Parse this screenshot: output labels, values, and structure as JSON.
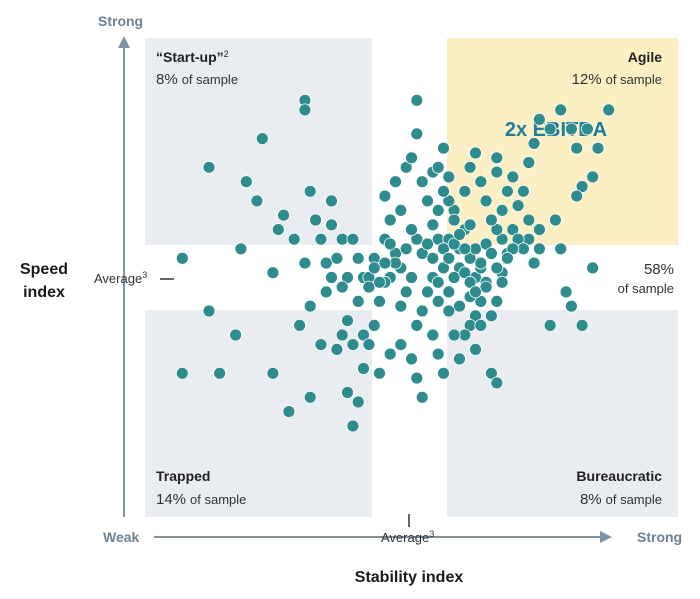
{
  "chart_data": {
    "type": "scatter",
    "title": "",
    "xlabel": "Stability index",
    "ylabel": "Speed index",
    "x_ends": {
      "low": "Weak",
      "high": "Strong"
    },
    "y_ends": {
      "low": "",
      "high": "Strong"
    },
    "x_average_label": "Average",
    "y_average_label": "Average",
    "average_footnote": "3",
    "xlim": [
      0,
      100
    ],
    "ylim": [
      0,
      100
    ],
    "x_average": 53,
    "y_average": 53,
    "quadrants": [
      {
        "id": "startup",
        "title": "“Start-up”",
        "footnote": "2",
        "pct": "8%",
        "pct_suffix": "of sample",
        "position": "top-left",
        "color": "#e9edf1"
      },
      {
        "id": "agile",
        "title": "Agile",
        "footnote": "",
        "pct": "12%",
        "pct_suffix": "of sample",
        "position": "top-right",
        "color": "#fcefc4"
      },
      {
        "id": "trapped",
        "title": "Trapped",
        "footnote": "",
        "pct": "14%",
        "pct_suffix": "of sample",
        "position": "bottom-left",
        "color": "#e9edf1"
      },
      {
        "id": "bureaucratic",
        "title": "Bureaucratic",
        "footnote": "",
        "pct": "8%",
        "pct_suffix": "of sample",
        "position": "bottom-right",
        "color": "#e9edf1"
      }
    ],
    "middle_band": {
      "pct": "58%",
      "pct_suffix": "of sample"
    },
    "callout": {
      "text": "2x EBITDA",
      "color": "#1f7c9a"
    },
    "point_color": "#2e8c8f",
    "points": [
      [
        30,
        87
      ],
      [
        30,
        85
      ],
      [
        22,
        79
      ],
      [
        19,
        70
      ],
      [
        21,
        66
      ],
      [
        26,
        63
      ],
      [
        31,
        68
      ],
      [
        25,
        60
      ],
      [
        35,
        66
      ],
      [
        28,
        58
      ],
      [
        33,
        58
      ],
      [
        32,
        62
      ],
      [
        37,
        58
      ],
      [
        35,
        61
      ],
      [
        36,
        54
      ],
      [
        34,
        53
      ],
      [
        30,
        53
      ],
      [
        34,
        47
      ],
      [
        35,
        50
      ],
      [
        39,
        58
      ],
      [
        40,
        54
      ],
      [
        38,
        50
      ],
      [
        41,
        50
      ],
      [
        37,
        48
      ],
      [
        18,
        56
      ],
      [
        12,
        73
      ],
      [
        7,
        54
      ],
      [
        7,
        30
      ],
      [
        14,
        30
      ],
      [
        17,
        38
      ],
      [
        12,
        43
      ],
      [
        24,
        51
      ],
      [
        31,
        44
      ],
      [
        29,
        40
      ],
      [
        31,
        25
      ],
      [
        27,
        22
      ],
      [
        24,
        30
      ],
      [
        33,
        36
      ],
      [
        36,
        35
      ],
      [
        37,
        38
      ],
      [
        38,
        41
      ],
      [
        39,
        36
      ],
      [
        41,
        38
      ],
      [
        40,
        45
      ],
      [
        42,
        50
      ],
      [
        43,
        54
      ],
      [
        45,
        58
      ],
      [
        46,
        62
      ],
      [
        45,
        67
      ],
      [
        48,
        64
      ],
      [
        47,
        70
      ],
      [
        49,
        73
      ],
      [
        50,
        75
      ],
      [
        51,
        80
      ],
      [
        51,
        87
      ],
      [
        52,
        70
      ],
      [
        53,
        66
      ],
      [
        54,
        61
      ],
      [
        55,
        58
      ],
      [
        55,
        64
      ],
      [
        54,
        72
      ],
      [
        56,
        77
      ],
      [
        57,
        71
      ],
      [
        58,
        64
      ],
      [
        57,
        58
      ],
      [
        59,
        56
      ],
      [
        60,
        60
      ],
      [
        59,
        52
      ],
      [
        58,
        50
      ],
      [
        61,
        54
      ],
      [
        62,
        56
      ],
      [
        62,
        50
      ],
      [
        63,
        52
      ],
      [
        64,
        57
      ],
      [
        65,
        55
      ],
      [
        64,
        49
      ],
      [
        63,
        45
      ],
      [
        62,
        42
      ],
      [
        61,
        40
      ],
      [
        60,
        38
      ],
      [
        59,
        44
      ],
      [
        57,
        47
      ],
      [
        56,
        52
      ],
      [
        55,
        45
      ],
      [
        54,
        50
      ],
      [
        53,
        47
      ],
      [
        52,
        43
      ],
      [
        51,
        40
      ],
      [
        50,
        50
      ],
      [
        49,
        47
      ],
      [
        48,
        44
      ],
      [
        47,
        55
      ],
      [
        46,
        50
      ],
      [
        45,
        49
      ],
      [
        44,
        45
      ],
      [
        43,
        40
      ],
      [
        42,
        36
      ],
      [
        41,
        31
      ],
      [
        40,
        24
      ],
      [
        38,
        26
      ],
      [
        39,
        19
      ],
      [
        44,
        30
      ],
      [
        46,
        34
      ],
      [
        48,
        36
      ],
      [
        50,
        33
      ],
      [
        51,
        29
      ],
      [
        52,
        25
      ],
      [
        54,
        38
      ],
      [
        55,
        34
      ],
      [
        56,
        30
      ],
      [
        57,
        43
      ],
      [
        58,
        38
      ],
      [
        59,
        33
      ],
      [
        61,
        46
      ],
      [
        62,
        35
      ],
      [
        63,
        40
      ],
      [
        64,
        48
      ],
      [
        65,
        42
      ],
      [
        66,
        45
      ],
      [
        67,
        51
      ],
      [
        68,
        55
      ],
      [
        69,
        60
      ],
      [
        70,
        65
      ],
      [
        71,
        68
      ],
      [
        72,
        74
      ],
      [
        73,
        78
      ],
      [
        74,
        83
      ],
      [
        76,
        81
      ],
      [
        78,
        85
      ],
      [
        80,
        81
      ],
      [
        81,
        77
      ],
      [
        83,
        81
      ],
      [
        85,
        77
      ],
      [
        87,
        85
      ],
      [
        84,
        71
      ],
      [
        82,
        69
      ],
      [
        81,
        67
      ],
      [
        77,
        62
      ],
      [
        74,
        60
      ],
      [
        72,
        58
      ],
      [
        70,
        58
      ],
      [
        71,
        56
      ],
      [
        69,
        56
      ],
      [
        68,
        54
      ],
      [
        67,
        58
      ],
      [
        66,
        60
      ],
      [
        65,
        62
      ],
      [
        64,
        66
      ],
      [
        63,
        70
      ],
      [
        62,
        76
      ],
      [
        61,
        73
      ],
      [
        60,
        68
      ],
      [
        67,
        64
      ],
      [
        68,
        68
      ],
      [
        66,
        72
      ],
      [
        69,
        71
      ],
      [
        66,
        75
      ],
      [
        72,
        62
      ],
      [
        74,
        56
      ],
      [
        73,
        53
      ],
      [
        78,
        56
      ],
      [
        84,
        52
      ],
      [
        79,
        47
      ],
      [
        76,
        40
      ],
      [
        82,
        40
      ],
      [
        80,
        44
      ],
      [
        63,
        53
      ],
      [
        60,
        56
      ],
      [
        61,
        61
      ],
      [
        58,
        62
      ],
      [
        57,
        66
      ],
      [
        56,
        68
      ],
      [
        55,
        73
      ],
      [
        52,
        55
      ],
      [
        51,
        58
      ],
      [
        50,
        60
      ],
      [
        49,
        56
      ],
      [
        48,
        52
      ],
      [
        47,
        53
      ],
      [
        46,
        57
      ],
      [
        45,
        53
      ],
      [
        44,
        49
      ],
      [
        43,
        52
      ],
      [
        42,
        48
      ],
      [
        53,
        57
      ],
      [
        54,
        54
      ],
      [
        55,
        49
      ],
      [
        56,
        56
      ],
      [
        57,
        54
      ],
      [
        58,
        57
      ],
      [
        59,
        59
      ],
      [
        60,
        51
      ],
      [
        61,
        49
      ],
      [
        62,
        47
      ],
      [
        66,
        52
      ],
      [
        67,
        49
      ],
      [
        65,
        30
      ],
      [
        66,
        28
      ]
    ]
  }
}
